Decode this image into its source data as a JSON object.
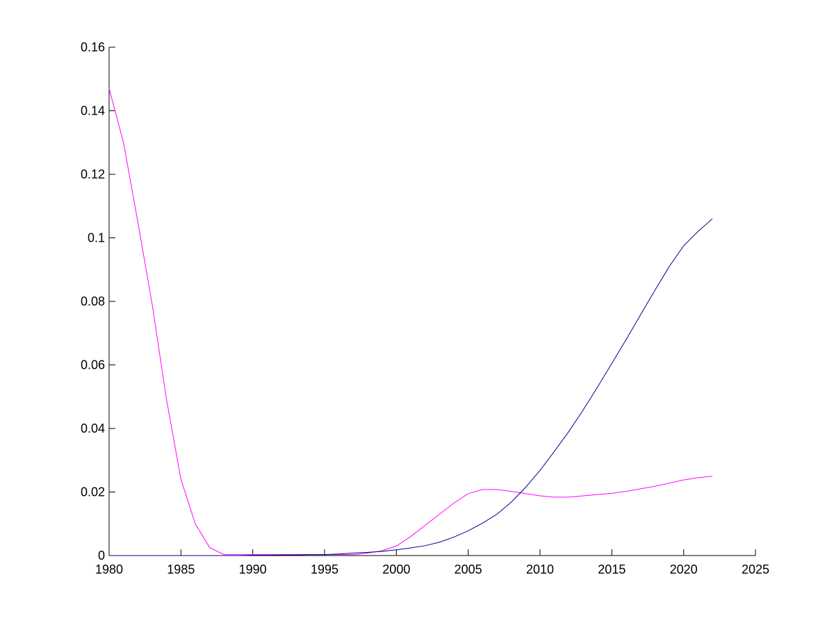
{
  "chart_data": {
    "type": "line",
    "x": [
      1980,
      1981,
      1982,
      1983,
      1984,
      1985,
      1986,
      1987,
      1988,
      1989,
      1990,
      1991,
      1992,
      1993,
      1994,
      1995,
      1996,
      1997,
      1998,
      1999,
      2000,
      2001,
      2002,
      2003,
      2004,
      2005,
      2006,
      2007,
      2008,
      2009,
      2010,
      2011,
      2012,
      2013,
      2014,
      2015,
      2016,
      2017,
      2018,
      2019,
      2020,
      2021,
      2022
    ],
    "series": [
      {
        "color": "#ff00ff",
        "values": [
          0.147,
          0.13,
          0.105,
          0.079,
          0.049,
          0.024,
          0.01,
          0.0025,
          0.0003,
          0.0003,
          0.0003,
          0.0003,
          0.0003,
          0.0003,
          0.0003,
          0.0003,
          0.0003,
          0.0003,
          0.0008,
          0.0015,
          0.003,
          0.006,
          0.0095,
          0.013,
          0.0165,
          0.0195,
          0.0208,
          0.0208,
          0.0202,
          0.0195,
          0.0188,
          0.0184,
          0.0184,
          0.0188,
          0.0192,
          0.0196,
          0.0202,
          0.021,
          0.0218,
          0.0228,
          0.0238,
          0.0245,
          0.025
        ]
      },
      {
        "color": "#00008b",
        "values": [
          0,
          0,
          0,
          0,
          0,
          0,
          0,
          0,
          0,
          0,
          0.0001,
          0.0001,
          0.0002,
          0.0002,
          0.0003,
          0.0003,
          0.0005,
          0.0008,
          0.001,
          0.0013,
          0.0018,
          0.0024,
          0.0031,
          0.0042,
          0.0058,
          0.0078,
          0.0102,
          0.013,
          0.0168,
          0.0215,
          0.0268,
          0.0328,
          0.039,
          0.0458,
          0.053,
          0.0605,
          0.068,
          0.0758,
          0.0835,
          0.091,
          0.0975,
          0.102,
          0.106
        ]
      }
    ],
    "xlim": [
      1980,
      2025
    ],
    "xticks": [
      1980,
      1985,
      1990,
      1995,
      2000,
      2005,
      2010,
      2015,
      2020,
      2025
    ],
    "ylim": [
      0,
      0.16
    ],
    "yticks": [
      0,
      0.02,
      0.04,
      0.06,
      0.08,
      0.1,
      0.12,
      0.14,
      0.16
    ]
  }
}
